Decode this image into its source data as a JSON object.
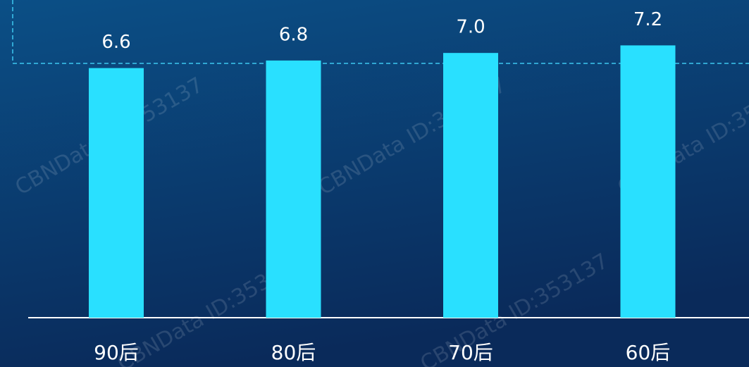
{
  "chart_data": {
    "type": "bar",
    "categories": [
      "90后",
      "80后",
      "70后",
      "60后"
    ],
    "values": [
      6.6,
      6.8,
      7.0,
      7.2
    ],
    "value_labels": [
      "6.6",
      "6.8",
      "7.0",
      "7.2"
    ],
    "color": "#29e0ff",
    "ylim": [
      0,
      8.4
    ],
    "watermark": "CBNData ID:353137"
  }
}
